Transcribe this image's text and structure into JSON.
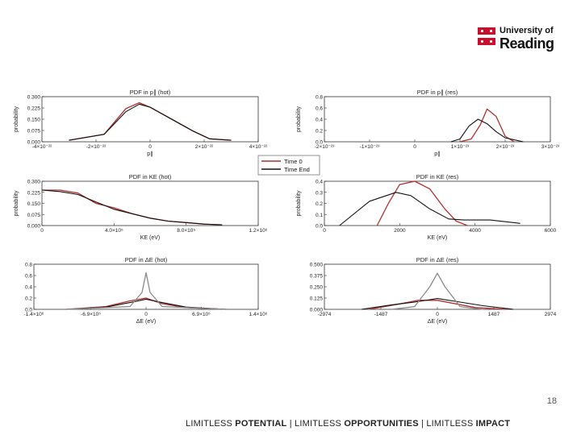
{
  "logo": {
    "line1": "University of",
    "line2": "Reading"
  },
  "colors": {
    "time0": "#b0312d",
    "timeend": "#111111",
    "spike": "#8a8a8a"
  },
  "legend": {
    "items": [
      "Time 0",
      "Time End"
    ]
  },
  "page_number": "18",
  "footer": {
    "w1": "LIMITLESS ",
    "b1": "POTENTIAL",
    "sep1": " | LIMITLESS ",
    "b2": "OPPORTUNITIES",
    "sep2": " | LIMITLESS ",
    "b3": "IMPACT"
  },
  "chart_data": [
    {
      "id": "p-hot",
      "type": "line",
      "title": "PDF in p∥ (hot)",
      "xlabel": "p∥",
      "ylabel": "probability",
      "xlim": [
        -4e-22,
        4e-22
      ],
      "ylim": [
        0,
        0.3
      ],
      "xticks": [
        -4e-22,
        -2e-22,
        0,
        2e-22,
        4e-22
      ],
      "xtick_labels": [
        "-4×10⁻²²",
        "-2×10⁻²²",
        "0",
        "2×10⁻²²",
        "4×10⁻²²"
      ],
      "yticks": [
        0,
        0.075,
        0.15,
        0.225,
        0.3
      ],
      "ytick_labels": [
        "0.000",
        "0.075",
        "0.150",
        "0.225",
        "0.300"
      ],
      "series": [
        {
          "name": "Time 0",
          "x": [
            -3e-22,
            -1.7e-22,
            -9e-23,
            -4e-23,
            0,
            8e-23,
            1.6e-22,
            2.2e-22,
            3e-22
          ],
          "y": [
            0.01,
            0.05,
            0.22,
            0.26,
            0.23,
            0.15,
            0.07,
            0.02,
            0.01
          ]
        },
        {
          "name": "Time End",
          "x": [
            -3e-22,
            -1.7e-22,
            -9e-23,
            -4e-23,
            0,
            8e-23,
            1.6e-22,
            2.2e-22,
            3e-22
          ],
          "y": [
            0.01,
            0.05,
            0.2,
            0.25,
            0.23,
            0.15,
            0.07,
            0.02,
            0.01
          ]
        }
      ]
    },
    {
      "id": "p-res",
      "type": "line",
      "title": "PDF in p∥ (res)",
      "xlabel": "p∥",
      "ylabel": "probability",
      "xlim": [
        -2e-23,
        3e-23
      ],
      "ylim": [
        0,
        0.8
      ],
      "xticks": [
        -2e-23,
        -1e-23,
        0,
        1e-23,
        2e-23,
        3e-23
      ],
      "xtick_labels": [
        "-2×10⁻²³",
        "-1×10⁻²³",
        "0",
        "1×10⁻²³",
        "2×10⁻²³",
        "3×10⁻²³"
      ],
      "yticks": [
        0,
        0.2,
        0.4,
        0.6,
        0.8
      ],
      "ytick_labels": [
        "0.0",
        "0.2",
        "0.4",
        "0.6",
        "0.8"
      ],
      "series": [
        {
          "name": "Time 0",
          "x": [
            1e-23,
            1.25e-23,
            1.45e-23,
            1.6e-23,
            1.8e-23,
            2e-23,
            2.2e-23
          ],
          "y": [
            0,
            0.05,
            0.3,
            0.58,
            0.45,
            0.1,
            0
          ]
        },
        {
          "name": "Time End",
          "x": [
            8e-24,
            1e-23,
            1.2e-23,
            1.4e-23,
            1.6e-23,
            1.8e-23,
            2e-23,
            2.4e-23
          ],
          "y": [
            0,
            0.05,
            0.28,
            0.4,
            0.32,
            0.18,
            0.07,
            0
          ]
        }
      ]
    },
    {
      "id": "ke-hot",
      "type": "line",
      "title": "PDF in KE (hot)",
      "xlabel": "KE (eV)",
      "ylabel": "probability",
      "xlim": [
        0,
        1200000.0
      ],
      "ylim": [
        0,
        0.3
      ],
      "xticks": [
        0,
        400000.0,
        800000.0,
        1200000.0
      ],
      "xtick_labels": [
        "0",
        "4.0×10⁵",
        "8.0×10⁵",
        "1.2×10⁶"
      ],
      "yticks": [
        0,
        0.075,
        0.15,
        0.225,
        0.3
      ],
      "ytick_labels": [
        "0.000",
        "0.075",
        "0.150",
        "0.225",
        "0.300"
      ],
      "series": [
        {
          "name": "Time 0",
          "x": [
            0,
            100000.0,
            200000.0,
            300000.0,
            400000.0,
            500000.0,
            600000.0,
            700000.0,
            800000.0,
            900000.0,
            1000000.0
          ],
          "y": [
            0.24,
            0.24,
            0.22,
            0.15,
            0.12,
            0.08,
            0.05,
            0.03,
            0.02,
            0.01,
            0.005
          ]
        },
        {
          "name": "Time End",
          "x": [
            0,
            100000.0,
            200000.0,
            300000.0,
            400000.0,
            500000.0,
            600000.0,
            700000.0,
            800000.0,
            900000.0,
            1000000.0
          ],
          "y": [
            0.24,
            0.23,
            0.21,
            0.16,
            0.11,
            0.08,
            0.05,
            0.03,
            0.02,
            0.01,
            0.005
          ]
        }
      ]
    },
    {
      "id": "ke-res",
      "type": "line",
      "title": "PDF in KE (res)",
      "xlabel": "KE (eV)",
      "ylabel": "probability",
      "xlim": [
        0,
        6000
      ],
      "ylim": [
        0,
        0.4
      ],
      "xticks": [
        0,
        2000,
        4000,
        6000
      ],
      "xtick_labels": [
        "0",
        "2000",
        "4000",
        "6000"
      ],
      "yticks": [
        0,
        0.1,
        0.2,
        0.3,
        0.4
      ],
      "ytick_labels": [
        "0.0",
        "0.1",
        "0.2",
        "0.3",
        "0.4"
      ],
      "series": [
        {
          "name": "Time 0",
          "x": [
            1400,
            1700,
            2000,
            2400,
            2800,
            3200,
            3500,
            3800
          ],
          "y": [
            0,
            0.2,
            0.37,
            0.4,
            0.33,
            0.15,
            0.04,
            0
          ]
        },
        {
          "name": "Time End",
          "x": [
            400,
            1200,
            1900,
            2300,
            2800,
            3300,
            3700,
            4400,
            5200
          ],
          "y": [
            0,
            0.22,
            0.3,
            0.27,
            0.15,
            0.06,
            0.05,
            0.05,
            0.02
          ]
        }
      ]
    },
    {
      "id": "de-hot",
      "type": "line",
      "title": "PDF in ΔE (hot)",
      "xlabel": "ΔE (eV)",
      "ylabel": "",
      "xlim": [
        -1400000.0,
        1400000.0
      ],
      "ylim": [
        0,
        0.8
      ],
      "xticks": [
        -1400000.0,
        -690000.0,
        0,
        690000.0,
        1400000.0
      ],
      "xtick_labels": [
        "-1.4×10⁶",
        "-6.9×10⁵",
        "0",
        "6.9×10⁵",
        "1.4×10⁶"
      ],
      "yticks": [
        0,
        0.2,
        0.4,
        0.6,
        0.8
      ],
      "ytick_labels": [
        "0.0",
        "0.2",
        "0.4",
        "0.6",
        "0.8"
      ],
      "series": [
        {
          "name": "Time 0",
          "x": [
            -1000000.0,
            -500000.0,
            -200000.0,
            0,
            200000.0,
            500000.0,
            1000000.0
          ],
          "y": [
            0,
            0.05,
            0.15,
            0.2,
            0.1,
            0.03,
            0
          ]
        },
        {
          "name": "Time End",
          "x": [
            -1000000.0,
            -500000.0,
            -200000.0,
            0,
            200000.0,
            500000.0,
            1000000.0
          ],
          "y": [
            0,
            0.04,
            0.12,
            0.18,
            0.12,
            0.04,
            0
          ]
        },
        {
          "name": "Time End (spike)",
          "x": [
            -1000000.0,
            -200000.0,
            -50000.0,
            0,
            50000.0,
            200000.0,
            1000000.0
          ],
          "y": [
            0,
            0.05,
            0.3,
            0.65,
            0.3,
            0.05,
            0
          ]
        }
      ]
    },
    {
      "id": "de-res",
      "type": "line",
      "title": "PDF in ΔE (res)",
      "xlabel": "ΔE (eV)",
      "ylabel": "",
      "xlim": [
        -2974,
        2974
      ],
      "ylim": [
        0,
        0.5
      ],
      "xticks": [
        -2974,
        -1487,
        0,
        1487,
        2974
      ],
      "xtick_labels": [
        "-2974",
        "-1487",
        "0",
        "1487",
        "2974"
      ],
      "yticks": [
        0,
        0.125,
        0.25,
        0.375,
        0.5
      ],
      "ytick_labels": [
        "0.000",
        "0.125",
        "0.250",
        "0.375",
        "0.500"
      ],
      "series": [
        {
          "name": "Time 0",
          "x": [
            -1800,
            -1000,
            -500,
            0,
            500,
            1000,
            1800
          ],
          "y": [
            0,
            0.06,
            0.1,
            0.1,
            0.06,
            0.02,
            0
          ]
        },
        {
          "name": "Time End",
          "x": [
            -2000,
            -1200,
            -600,
            0,
            600,
            1200,
            2000
          ],
          "y": [
            0,
            0.05,
            0.08,
            0.12,
            0.08,
            0.04,
            0
          ]
        },
        {
          "name": "Time End (spike)",
          "x": [
            -1200,
            -600,
            -200,
            0,
            200,
            600,
            1200
          ],
          "y": [
            0,
            0.03,
            0.25,
            0.4,
            0.25,
            0.03,
            0
          ]
        }
      ]
    }
  ]
}
